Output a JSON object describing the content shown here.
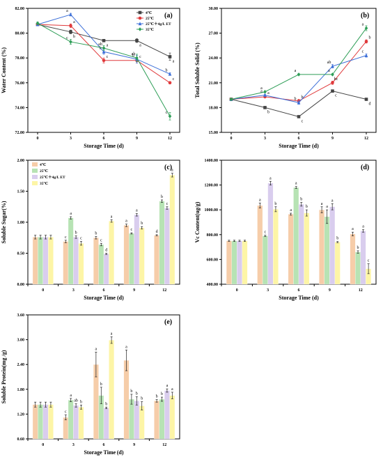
{
  "chart_data": [
    {
      "panel": "(a)",
      "type": "line",
      "xlabel": "Storage Time (d)",
      "ylabel": "Water Content (%)",
      "x": [
        0,
        3,
        6,
        9,
        12
      ],
      "ylim": [
        72,
        82
      ],
      "yticks": [
        "72.00",
        "74.00",
        "76.00",
        "78.00",
        "80.00",
        "82.00"
      ],
      "legend_position": "top-right",
      "series": [
        {
          "name": "4℃",
          "color": "#444444",
          "marker": "square",
          "values": [
            80.7,
            80.1,
            79.4,
            79.4,
            78.1
          ],
          "err": [
            0.1,
            0.15,
            0.1,
            0.15,
            0.3
          ],
          "sig": [
            "",
            "b",
            "a",
            "a",
            "a"
          ]
        },
        {
          "name": "25℃",
          "color": "#e0393b",
          "marker": "circle",
          "values": [
            80.7,
            80.6,
            77.8,
            77.8,
            76.0
          ],
          "err": [
            0.1,
            0.15,
            0.2,
            0.2,
            0.1
          ],
          "sig": [
            "",
            "a",
            "c",
            "c",
            "c"
          ]
        },
        {
          "name": "25℃＋4g/L ET",
          "color": "#3c6fd8",
          "marker": "triangle",
          "values": [
            80.7,
            81.5,
            78.5,
            77.9,
            76.7
          ],
          "err": [
            0.1,
            0.1,
            0.2,
            0.3,
            0.1
          ],
          "sig": [
            "",
            "a",
            "b",
            "b",
            "b"
          ]
        },
        {
          "name": "35℃",
          "color": "#2e9e57",
          "marker": "diamond",
          "values": [
            80.8,
            79.3,
            78.8,
            78.0,
            73.3
          ],
          "err": [
            0.1,
            0.2,
            0.2,
            0.3,
            0.3
          ],
          "sig": [
            "",
            "c",
            "ab",
            "ab",
            "c"
          ]
        }
      ]
    },
    {
      "panel": "(b)",
      "type": "line",
      "xlabel": "Storage Time (d)",
      "ylabel": "Total Soluble Solid (%)",
      "x": [
        0,
        3,
        6,
        9,
        12
      ],
      "ylim": [
        15,
        30
      ],
      "yticks": [
        "15.00",
        "18.00",
        "21.00",
        "24.00",
        "27.00",
        "30.00"
      ],
      "series": [
        {
          "name": "4℃",
          "color": "#444444",
          "marker": "square",
          "values": [
            19.0,
            18.0,
            16.9,
            20.0,
            19.0
          ],
          "err": [
            0.1,
            0.1,
            0.1,
            0.1,
            0.1
          ],
          "sig": [
            "",
            "b",
            "c",
            "c",
            "d"
          ]
        },
        {
          "name": "25℃",
          "color": "#e0393b",
          "marker": "circle",
          "values": [
            19.0,
            19.3,
            18.8,
            21.0,
            26.0
          ],
          "err": [
            0.1,
            0.1,
            0.2,
            0.2,
            0.2
          ],
          "sig": [
            "",
            "a",
            "b",
            "bc",
            "b"
          ]
        },
        {
          "name": "25℃＋4g/L ET",
          "color": "#3c6fd8",
          "marker": "triangle",
          "values": [
            19.0,
            19.5,
            18.6,
            23.0,
            24.3
          ],
          "err": [
            0.1,
            0.1,
            0.2,
            0.2,
            0.2
          ],
          "sig": [
            "",
            "a",
            "b",
            "ab",
            "c"
          ]
        },
        {
          "name": "35℃",
          "color": "#2e9e57",
          "marker": "diamond",
          "values": [
            19.0,
            19.9,
            22.0,
            22.0,
            27.6
          ],
          "err": [
            0.1,
            0.1,
            0.1,
            0.1,
            0.3
          ],
          "sig": [
            "",
            "a",
            "a",
            "a",
            "a"
          ]
        }
      ]
    },
    {
      "panel": "(c)",
      "type": "bar",
      "xlabel": "Storage Time (d)",
      "ylabel": "Soluble Sugar(%)",
      "categories": [
        "0",
        "3",
        "6",
        "9",
        "12"
      ],
      "ylim": [
        0,
        2
      ],
      "yticks": [
        "0.00",
        "0.50",
        "1.00",
        "1.50",
        "2.00"
      ],
      "legend_position": "top-left",
      "series": [
        {
          "name": "4℃",
          "color": "#f6cda9",
          "values": [
            0.76,
            0.69,
            0.75,
            0.95,
            0.79
          ],
          "err": [
            0.03,
            0.02,
            0.02,
            0.02,
            0.01
          ],
          "sig": [
            "",
            "c",
            "b",
            "a",
            "d"
          ]
        },
        {
          "name": "25℃",
          "color": "#b7e3b4",
          "values": [
            0.76,
            1.07,
            0.64,
            0.82,
            1.34
          ],
          "err": [
            0.03,
            0.02,
            0.02,
            0.01,
            0.02
          ],
          "sig": [
            "",
            "a",
            "c",
            "c",
            "b"
          ]
        },
        {
          "name": "25℃＋4g/L ET",
          "color": "#d9cdee",
          "values": [
            0.76,
            0.76,
            0.49,
            1.12,
            1.23
          ],
          "err": [
            0.03,
            0.02,
            0.01,
            0.02,
            0.02
          ],
          "sig": [
            "",
            "b",
            "d",
            "a",
            "c"
          ]
        },
        {
          "name": "35℃",
          "color": "#fdf5a6",
          "values": [
            0.76,
            0.66,
            1.02,
            0.91,
            1.76
          ],
          "err": [
            0.03,
            0.03,
            0.02,
            0.02,
            0.03
          ],
          "sig": [
            "",
            "c",
            "a",
            "b",
            "a"
          ]
        }
      ]
    },
    {
      "panel": "(d)",
      "type": "bar",
      "xlabel": "Storage Time (d)",
      "ylabel": "Vc Content(ug/g)",
      "categories": [
        "0",
        "3",
        "6",
        "9",
        "12"
      ],
      "ylim": [
        400,
        1400
      ],
      "yticks": [
        "400.00",
        "600.00",
        "800.00",
        "1000.00",
        "1200.00",
        "1400.00"
      ],
      "series": [
        {
          "name": "4℃",
          "color": "#f6cda9",
          "values": [
            750,
            1035,
            965,
            1000,
            805
          ],
          "err": [
            5,
            20,
            8,
            25,
            15
          ],
          "sig": [
            "",
            "a",
            "a",
            "a",
            "a"
          ]
        },
        {
          "name": "25℃",
          "color": "#b7e3b4",
          "values": [
            750,
            790,
            1180,
            945,
            660
          ],
          "err": [
            5,
            5,
            8,
            55,
            10
          ],
          "sig": [
            "",
            "c",
            "a",
            "a",
            "b"
          ]
        },
        {
          "name": "25℃＋4g/L ET",
          "color": "#d9cdee",
          "values": [
            750,
            1215,
            1045,
            1025,
            830
          ],
          "err": [
            5,
            15,
            15,
            25,
            10
          ],
          "sig": [
            "",
            "a",
            "b",
            "a",
            "a"
          ]
        },
        {
          "name": "35℃",
          "color": "#fdf5a6",
          "values": [
            750,
            1005,
            975,
            740,
            525
          ],
          "err": [
            5,
            20,
            25,
            5,
            40
          ],
          "sig": [
            "",
            "b",
            "b",
            "b",
            "c"
          ]
        }
      ]
    },
    {
      "panel": "(e)",
      "type": "bar",
      "xlabel": "Storage Time (d)",
      "ylabel": "Soluble Protein(mg /g)",
      "categories": [
        "0",
        "3",
        "6",
        "9",
        "12"
      ],
      "ylim": [
        0.6,
        3.6
      ],
      "yticks": [
        "0.60",
        "1.20",
        "1.80",
        "2.40",
        "3.00",
        "3.60"
      ],
      "series": [
        {
          "name": "4℃",
          "color": "#f6cda9",
          "values": [
            1.43,
            1.12,
            2.4,
            2.5,
            1.52
          ],
          "err": [
            0.06,
            0.06,
            0.3,
            0.25,
            0.03
          ],
          "sig": [
            "",
            "c",
            "a",
            "a",
            "b"
          ]
        },
        {
          "name": "25℃",
          "color": "#b7e3b4",
          "values": [
            1.43,
            1.54,
            1.65,
            1.56,
            1.56
          ],
          "err": [
            0.06,
            0.04,
            0.2,
            0.12,
            0.05
          ],
          "sig": [
            "",
            "a",
            "b",
            "b",
            "b"
          ]
        },
        {
          "name": "25℃＋4g/L ET",
          "color": "#d9cdee",
          "values": [
            1.43,
            1.41,
            1.35,
            1.52,
            1.77
          ],
          "err": [
            0.06,
            0.04,
            0.02,
            0.1,
            0.04
          ],
          "sig": [
            "",
            "ab",
            "b",
            "b",
            "a"
          ]
        },
        {
          "name": "35℃",
          "color": "#fdf5a6",
          "values": [
            1.43,
            1.37,
            2.99,
            1.4,
            1.65
          ],
          "err": [
            0.06,
            0.05,
            0.08,
            0.1,
            0.08
          ],
          "sig": [
            "",
            "b",
            "a",
            "b",
            "a"
          ]
        }
      ]
    }
  ]
}
